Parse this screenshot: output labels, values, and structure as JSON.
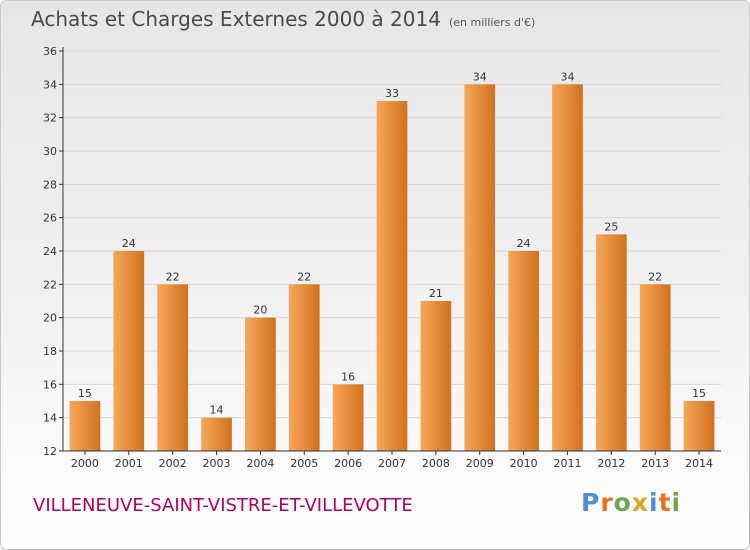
{
  "title": "Achats et Charges Externes 2000 à 2014",
  "subtitle": "(en milliers d'€)",
  "town": "VILLENEUVE-SAINT-VISTRE-ET-VILLEVOTTE",
  "brand": {
    "text": "Proxiti",
    "colors": [
      "#4d8fd1",
      "#e8731e",
      "#6aa84f",
      "#e0a42a"
    ]
  },
  "colors": {
    "bar_light": "#f6a75a",
    "bar_dark": "#d2711e",
    "axis": "#333333",
    "grid": "#d9d9d9",
    "title": "#4a4a4a",
    "town": "#b2005f"
  },
  "chart_data": {
    "type": "bar",
    "categories": [
      "2000",
      "2001",
      "2002",
      "2003",
      "2004",
      "2005",
      "2006",
      "2007",
      "2008",
      "2009",
      "2010",
      "2011",
      "2012",
      "2013",
      "2014"
    ],
    "values": [
      15,
      24,
      22,
      14,
      20,
      22,
      16,
      33,
      21,
      34,
      24,
      34,
      25,
      22,
      15
    ],
    "ylim": [
      12,
      36
    ],
    "yticks": [
      12,
      14,
      16,
      18,
      20,
      22,
      24,
      26,
      28,
      30,
      32,
      34,
      36
    ],
    "grid": true,
    "data_labels": true
  }
}
